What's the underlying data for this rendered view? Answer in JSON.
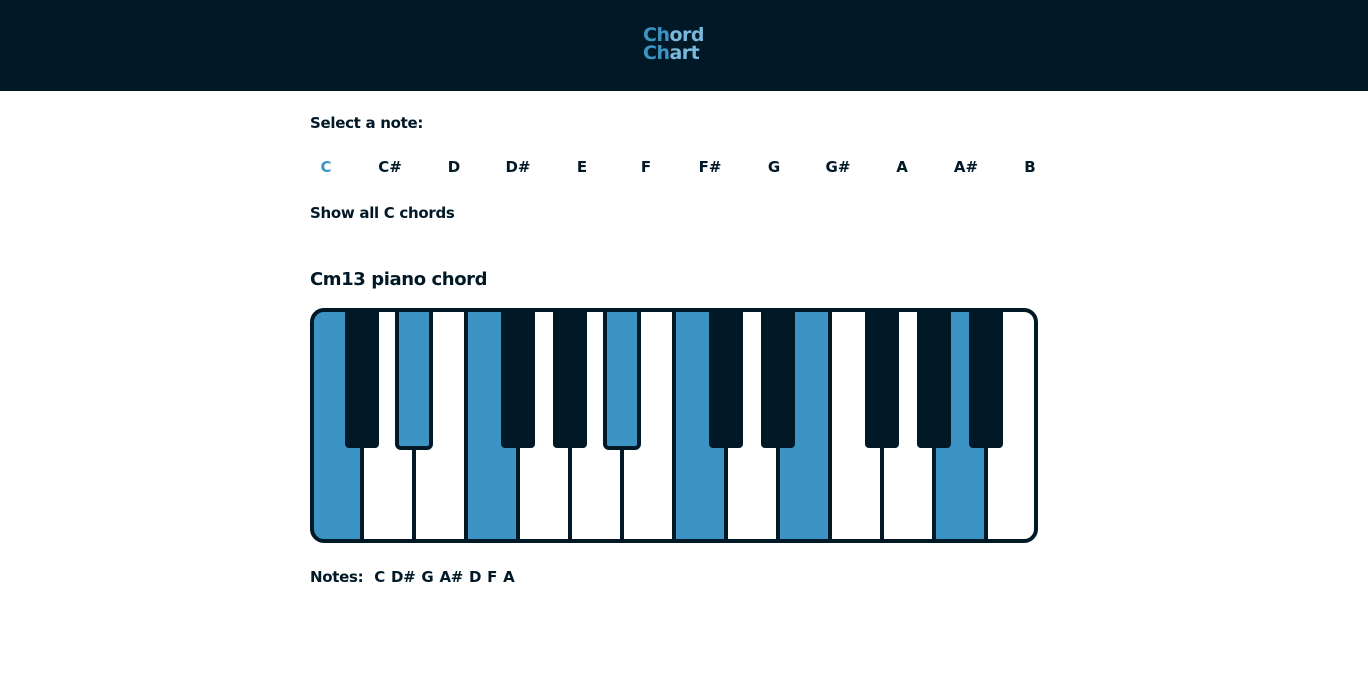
{
  "app": {
    "logo_line1": "Chord",
    "logo_line2": "Chart"
  },
  "selector": {
    "label": "Select a note:",
    "notes": [
      "C",
      "C#",
      "D",
      "D#",
      "E",
      "F",
      "F#",
      "G",
      "G#",
      "A",
      "A#",
      "B"
    ],
    "selected": "C",
    "show_all_label": "Show all C chords"
  },
  "chord": {
    "title": "Cm13 piano chord",
    "notes_label": "Notes:",
    "notes": [
      "C",
      "D#",
      "G",
      "A#",
      "D",
      "F",
      "A"
    ],
    "highlighted_white_keys": [
      0,
      3,
      7,
      9,
      12
    ],
    "highlighted_black_keys": [
      1,
      4
    ]
  },
  "colors": {
    "dark": "#011826",
    "accent": "#3b94c3",
    "accent_light": "#7ab9dc",
    "white": "#ffffff"
  }
}
